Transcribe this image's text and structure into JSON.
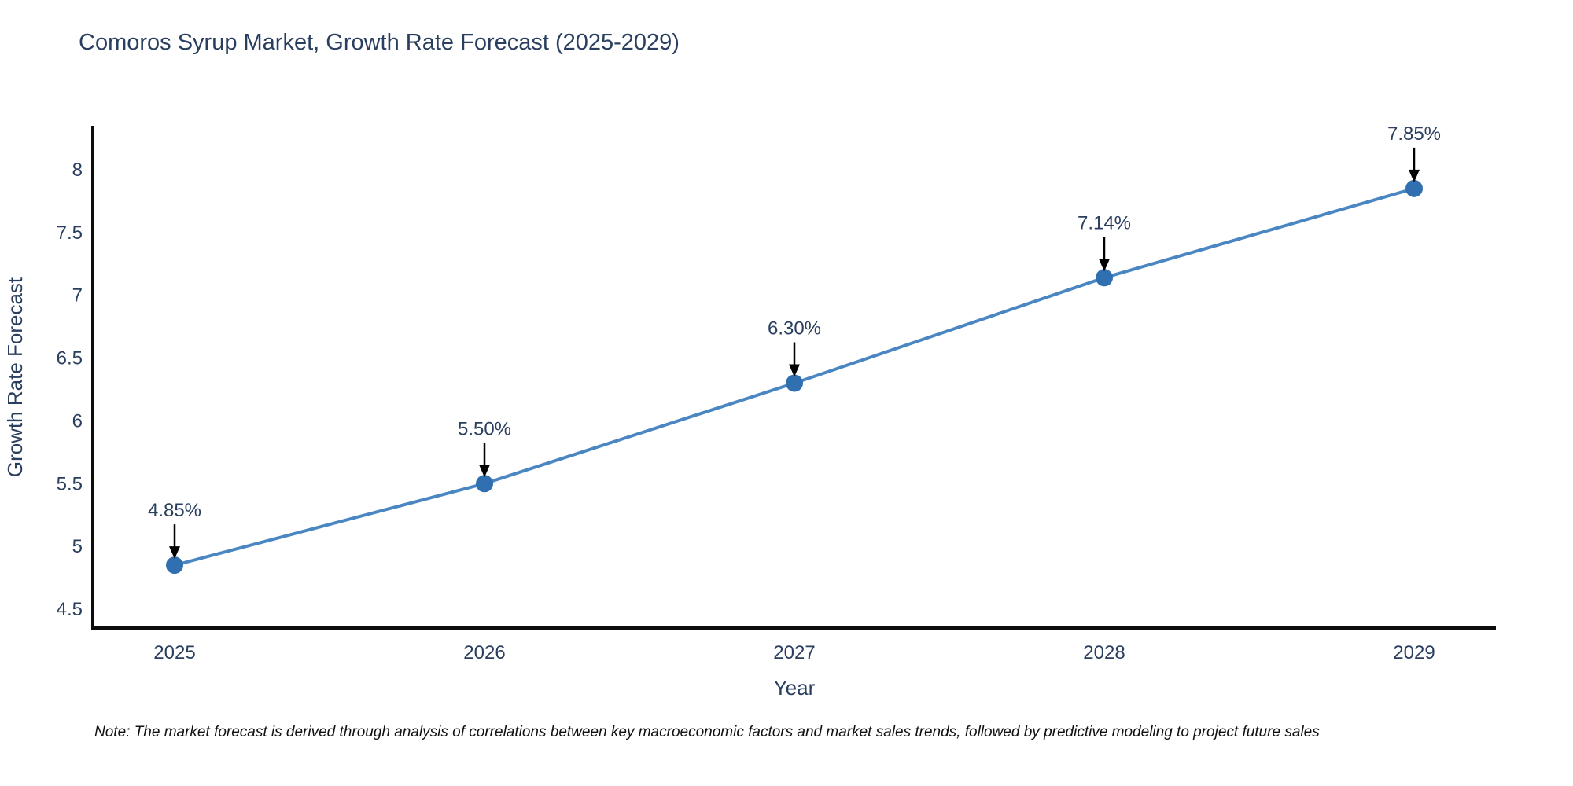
{
  "header": {
    "title": "Comoros Syrup Market, Growth Rate Forecast (2025-2029)"
  },
  "footer": {
    "note": "Note: The market forecast is derived through analysis of correlations between key macroeconomic factors and market sales trends, followed by predictive modeling to project future sales"
  },
  "chart_data": {
    "type": "line",
    "title": "Comoros Syrup Market, Growth Rate Forecast (2025-2029)",
    "xlabel": "Year",
    "ylabel": "Growth Rate Forecast",
    "x": [
      2025,
      2026,
      2027,
      2028,
      2029
    ],
    "series": [
      {
        "name": "Growth Rate Forecast",
        "values": [
          4.85,
          5.5,
          6.3,
          7.14,
          7.85
        ]
      }
    ],
    "point_labels": [
      "4.85%",
      "5.50%",
      "6.30%",
      "7.14%",
      "7.85%"
    ],
    "yticks": [
      4.5,
      5,
      5.5,
      6,
      6.5,
      7,
      7.5,
      8
    ],
    "ylim": [
      4.35,
      8.35
    ],
    "grid": false,
    "legend": "none",
    "colors": {
      "line": "#4a86c2",
      "marker": "#3070b0",
      "axis": "#0d0d0d",
      "text": "#2a3f5f",
      "annotation_arrow": "#000000"
    }
  }
}
